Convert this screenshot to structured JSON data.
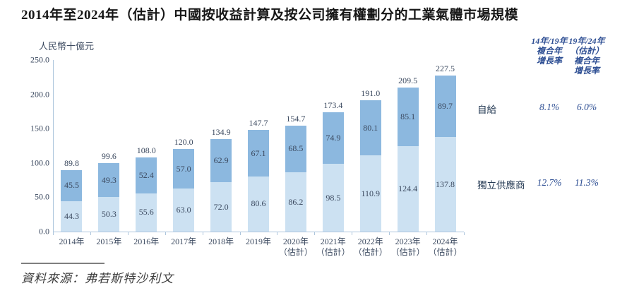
{
  "title": "2014年至2024年（估計）中國按收益計算及按公司擁有權劃分的工業氣體市場規模",
  "chart_data": {
    "type": "bar",
    "subtype": "stacked",
    "title": "2014年至2024年（估計）中國按收益計算及按公司擁有權劃分的工業氣體市場規模",
    "ylabel": "人民幣十億元",
    "xlabel": "",
    "ylim": [
      0,
      250
    ],
    "yticks": [
      "0.0",
      "50.0",
      "100.0",
      "150.0",
      "200.0",
      "250.0"
    ],
    "grid": false,
    "legend_position": "none (series identified in side table)",
    "categories": [
      "2014年",
      "2015年",
      "2016年",
      "2017年",
      "2018年",
      "2019年",
      "2020年",
      "2021年",
      "2022年",
      "2023年",
      "2024年"
    ],
    "category_notes": [
      "",
      "",
      "",
      "",
      "",
      "",
      "（估計）",
      "（估計）",
      "（估計）",
      "（估計）",
      "（估計）"
    ],
    "series": [
      {
        "name": "自給",
        "position": "top",
        "color": "#8cb8df",
        "values": [
          45.5,
          49.3,
          52.4,
          57.0,
          62.9,
          67.1,
          68.5,
          74.9,
          80.1,
          85.1,
          89.7
        ]
      },
      {
        "name": "獨立供應商",
        "position": "bottom",
        "color": "#cce1f2",
        "values": [
          44.3,
          50.3,
          55.6,
          63.0,
          72.0,
          80.6,
          86.2,
          98.5,
          110.9,
          124.4,
          137.8
        ]
      }
    ],
    "totals": [
      89.8,
      99.6,
      108.0,
      120.0,
      134.9,
      147.7,
      154.7,
      173.4,
      191.0,
      209.5,
      227.5
    ]
  },
  "growth_table": {
    "header_col1_lines": [
      "14年/19年",
      "複合年",
      "增長率"
    ],
    "header_col2_lines": [
      "19年/24年",
      "（估計）",
      "複合年",
      "增長率"
    ],
    "rows": [
      {
        "label": "自給",
        "cagr_14_19": "8.1%",
        "cagr_19_24": "6.0%"
      },
      {
        "label": "獨立供應商",
        "cagr_14_19": "12.7%",
        "cagr_19_24": "11.3%"
      }
    ]
  },
  "footer": {
    "source": "資料來源：弗若斯特沙利文"
  },
  "colors": {
    "captive_bar": "#8cb8df",
    "independent_bar": "#cce1f2",
    "axis": "#aec6dd",
    "chart_text": "#3c4a60",
    "growth_text": "#2d4e93",
    "title_text": "#161616"
  }
}
